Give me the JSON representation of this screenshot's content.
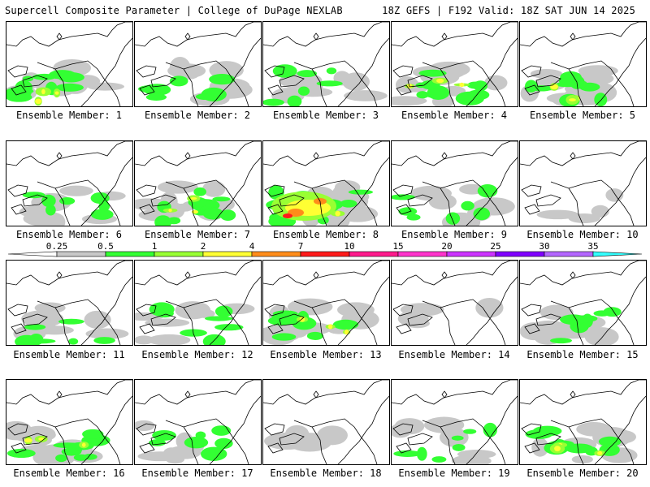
{
  "header": {
    "title_left": "Supercell Composite Parameter | College of DuPage NEXLAB",
    "title_right": "18Z GEFS | F192 Valid: 18Z SAT JUN 14 2025"
  },
  "panels": [
    {
      "member": 1,
      "label": "Ensemble Member: 1",
      "intensity": 2
    },
    {
      "member": 2,
      "label": "Ensemble Member: 2",
      "intensity": 1
    },
    {
      "member": 3,
      "label": "Ensemble Member: 3",
      "intensity": 1
    },
    {
      "member": 4,
      "label": "Ensemble Member: 4",
      "intensity": 2
    },
    {
      "member": 5,
      "label": "Ensemble Member: 5",
      "intensity": 2
    },
    {
      "member": 6,
      "label": "Ensemble Member: 6",
      "intensity": 1
    },
    {
      "member": 7,
      "label": "Ensemble Member: 7",
      "intensity": 2
    },
    {
      "member": 8,
      "label": "Ensemble Member: 8",
      "intensity": 4
    },
    {
      "member": 9,
      "label": "Ensemble Member: 9",
      "intensity": 1
    },
    {
      "member": 10,
      "label": "Ensemble Member: 10",
      "intensity": 0
    },
    {
      "member": 11,
      "label": "Ensemble Member: 11",
      "intensity": 1
    },
    {
      "member": 12,
      "label": "Ensemble Member: 12",
      "intensity": 1
    },
    {
      "member": 13,
      "label": "Ensemble Member: 13",
      "intensity": 2
    },
    {
      "member": 14,
      "label": "Ensemble Member: 14",
      "intensity": 0
    },
    {
      "member": 15,
      "label": "Ensemble Member: 15",
      "intensity": 1
    },
    {
      "member": 16,
      "label": "Ensemble Member: 16",
      "intensity": 2
    },
    {
      "member": 17,
      "label": "Ensemble Member: 17",
      "intensity": 1
    },
    {
      "member": 18,
      "label": "Ensemble Member: 18",
      "intensity": 0
    },
    {
      "member": 19,
      "label": "Ensemble Member: 19",
      "intensity": 1
    },
    {
      "member": 20,
      "label": "Ensemble Member: 20",
      "intensity": 2
    }
  ],
  "colorbar": {
    "labels": [
      "0.25",
      "0.5",
      "1",
      "2",
      "4",
      "7",
      "10",
      "15",
      "20",
      "25",
      "30",
      "35"
    ],
    "colors": [
      "#ffffff",
      "#c8c8c8",
      "#33ff33",
      "#99ff33",
      "#ffff33",
      "#ff8c1a",
      "#ff1a1a",
      "#ff1a8c",
      "#ff33cc",
      "#cc33ff",
      "#8000ff",
      "#b366ff",
      "#33ffff"
    ]
  },
  "colors": {
    "gray": "#c8c8c8",
    "green": "#33ff33",
    "lightgreen": "#99ff33",
    "yellow": "#ffff33",
    "orange": "#ff8c1a",
    "red": "#ff1a1a"
  }
}
